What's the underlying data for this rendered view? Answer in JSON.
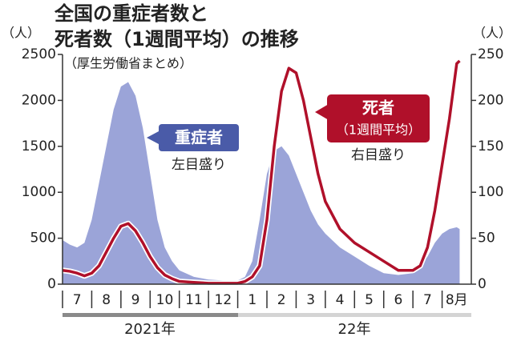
{
  "chart_data": {
    "type": "area-line",
    "title_lines": [
      "全国の重症者数と",
      "死者数（1週間平均）の推移"
    ],
    "subtitle": "（厚生労働省まとめ）",
    "y_unit": "（人）",
    "y2_unit": "（人）",
    "x": [
      0,
      0.25,
      0.5,
      0.75,
      1,
      1.25,
      1.5,
      1.75,
      2,
      2.25,
      2.5,
      2.75,
      3,
      3.25,
      3.5,
      3.75,
      4,
      4.5,
      5,
      5.5,
      6,
      6.25,
      6.5,
      6.75,
      7,
      7.25,
      7.5,
      7.75,
      8,
      8.25,
      8.5,
      8.75,
      9,
      9.5,
      10,
      10.5,
      11,
      11.5,
      12,
      12.25,
      12.5,
      12.75,
      13,
      13.25,
      13.5,
      13.6
    ],
    "xlim": [
      0,
      14
    ],
    "xticks": [
      {
        "value": 0.5,
        "label": "7"
      },
      {
        "value": 1.5,
        "label": "8"
      },
      {
        "value": 2.5,
        "label": "9"
      },
      {
        "value": 3.5,
        "label": "10"
      },
      {
        "value": 4.5,
        "label": "11"
      },
      {
        "value": 5.5,
        "label": "12"
      },
      {
        "value": 6.5,
        "label": "1"
      },
      {
        "value": 7.5,
        "label": "2"
      },
      {
        "value": 8.5,
        "label": "3"
      },
      {
        "value": 9.5,
        "label": "4"
      },
      {
        "value": 10.5,
        "label": "5"
      },
      {
        "value": 11.5,
        "label": "6"
      },
      {
        "value": 12.5,
        "label": "7"
      },
      {
        "value": 13.5,
        "label": "8月"
      }
    ],
    "year_labels": [
      "2021年",
      "22年"
    ],
    "ylim": [
      0,
      2500
    ],
    "yticks": [
      0,
      500,
      1000,
      1500,
      2000,
      2500
    ],
    "y2lim": [
      0,
      250
    ],
    "y2ticks": [
      0,
      50,
      100,
      150,
      200,
      250
    ],
    "series": [
      {
        "name": "重症者",
        "note": "左目盛り",
        "color": "#9ba4d8",
        "kind": "area",
        "values": [
          480,
          430,
          400,
          450,
          700,
          1100,
          1500,
          1900,
          2150,
          2200,
          2050,
          1700,
          1200,
          700,
          400,
          250,
          150,
          80,
          50,
          40,
          40,
          80,
          250,
          700,
          1200,
          1450,
          1500,
          1400,
          1200,
          1000,
          800,
          650,
          550,
          400,
          300,
          200,
          120,
          100,
          120,
          200,
          300,
          450,
          550,
          600,
          620,
          600
        ]
      },
      {
        "name": "死者",
        "note": "右目盛り",
        "sub": "（1週間平均）",
        "color": "#b0102a",
        "kind": "line",
        "axis": "y2",
        "values": [
          15,
          14,
          12,
          9,
          12,
          20,
          35,
          50,
          63,
          66,
          58,
          45,
          30,
          18,
          10,
          6,
          3,
          2,
          1,
          1,
          1,
          3,
          8,
          20,
          70,
          150,
          210,
          235,
          230,
          200,
          160,
          120,
          90,
          60,
          45,
          35,
          25,
          15,
          15,
          20,
          40,
          80,
          130,
          180,
          240,
          243
        ]
      }
    ]
  }
}
